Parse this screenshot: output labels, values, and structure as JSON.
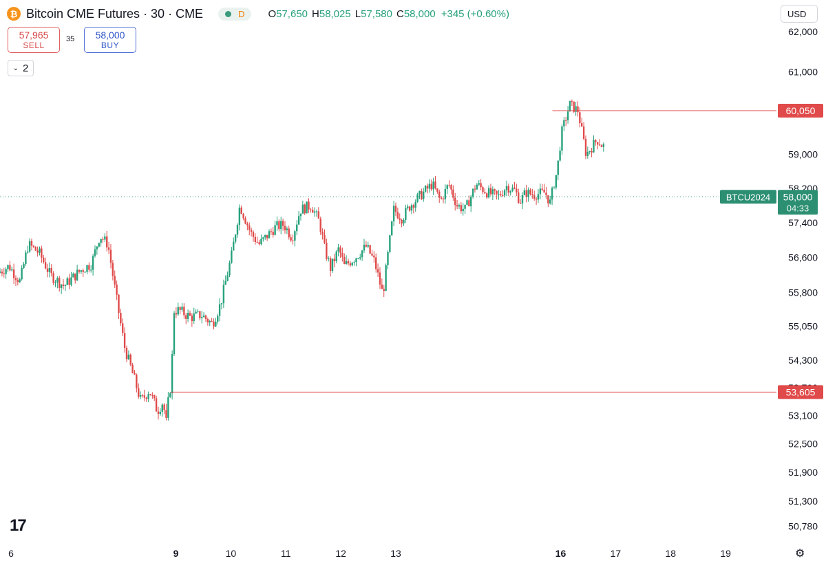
{
  "header": {
    "coin_icon": "bitcoin-icon",
    "coin_glyph": "₿",
    "title": "Bitcoin CME Futures · 30 · CME",
    "status_badge": "D",
    "ohlc": {
      "o_label": "O",
      "o": "57,650",
      "h_label": "H",
      "h": "58,025",
      "l_label": "L",
      "l": "57,580",
      "c_label": "C",
      "c": "58,000",
      "change": "+345 (+0.60%)"
    }
  },
  "currency": "USD",
  "trade": {
    "sell_price": "57,965",
    "sell_label": "SELL",
    "buy_price": "58,000",
    "buy_label": "BUY",
    "spread": "35"
  },
  "collapse": {
    "count": "2",
    "icon": "chevron-down-icon"
  },
  "logo": "17",
  "settings_icon": "gear-icon",
  "colors": {
    "up": "#26a17b",
    "down": "#e04a4a",
    "grid_text": "#131722",
    "price_tag": "#2d8f72",
    "line": "#e04a4a"
  },
  "chart_data": {
    "type": "candlestick",
    "title": "Bitcoin CME Futures · 30 · CME",
    "symbol": "BTCU2024",
    "interval": "30",
    "y_ticks": [
      50780,
      51300,
      51900,
      52500,
      53100,
      53700,
      54300,
      55050,
      55800,
      56600,
      57400,
      58200,
      59000,
      61000,
      62000
    ],
    "y_tick_labels": [
      "50,780",
      "51,300",
      "51,900",
      "52,500",
      "53,100",
      "53,700",
      "54,300",
      "55,050",
      "55,800",
      "56,600",
      "57,400",
      "58,200",
      "59,000",
      "61,000",
      "62,000"
    ],
    "y_scale": "log",
    "ylim": [
      50550,
      62100
    ],
    "x_ticks": [
      6,
      9,
      10,
      11,
      12,
      13,
      16,
      17,
      18,
      19
    ],
    "x_tick_labels": [
      "6",
      "9",
      "10",
      "11",
      "12",
      "13",
      "16",
      "17",
      "18",
      "19"
    ],
    "x_tick_bold": [
      "9",
      "16"
    ],
    "xlim": [
      5.8,
      19.9
    ],
    "last_price": 58000,
    "last_price_label": "58,000",
    "countdown": "04:33",
    "horizontal_lines": [
      {
        "value": 60050,
        "label": "60,050",
        "x_start": 15.85
      },
      {
        "value": 53605,
        "label": "53,605",
        "x_start": 8.9
      }
    ],
    "path_days": [
      5.8,
      6.0,
      6.2,
      6.35,
      6.55,
      6.75,
      7.0,
      7.3,
      7.5,
      7.65,
      7.8,
      7.95,
      8.1,
      8.25,
      8.4,
      8.55,
      8.7,
      8.8,
      8.86,
      8.91,
      8.95,
      9.0,
      9.1,
      9.3,
      9.5,
      9.7,
      9.85,
      10.05,
      10.2,
      10.4,
      10.55,
      10.7,
      10.85,
      11.0,
      11.15,
      11.3,
      11.5,
      11.65,
      11.75,
      11.85,
      12.0,
      12.1,
      12.3,
      12.5,
      12.65,
      12.8,
      13.0,
      13.15,
      13.3,
      13.5,
      13.7,
      13.85,
      14.0,
      14.15,
      14.3,
      14.5,
      14.7,
      14.9,
      15.05,
      15.2,
      15.3,
      15.4,
      15.55,
      15.75,
      15.85,
      15.9,
      15.97,
      16.05,
      16.2,
      16.35,
      16.5,
      16.7,
      16.8
    ],
    "path_prices": [
      56250,
      56400,
      56050,
      56900,
      56700,
      56200,
      55950,
      56300,
      56450,
      57100,
      56900,
      55700,
      54600,
      54000,
      53400,
      53650,
      53200,
      53400,
      52950,
      53550,
      53800,
      55400,
      55400,
      55250,
      55300,
      55100,
      55550,
      56650,
      57800,
      57150,
      56900,
      57100,
      57300,
      57350,
      57050,
      57700,
      57800,
      57400,
      56750,
      56350,
      56800,
      56400,
      56600,
      56850,
      56500,
      55750,
      57700,
      57500,
      57800,
      58050,
      58300,
      57900,
      58300,
      57800,
      57700,
      58300,
      58100,
      58000,
      58250,
      58150,
      57900,
      58100,
      58050,
      58100,
      57850,
      58250,
      58600,
      59500,
      60200,
      60050,
      59000,
      59350,
      59200
    ]
  }
}
